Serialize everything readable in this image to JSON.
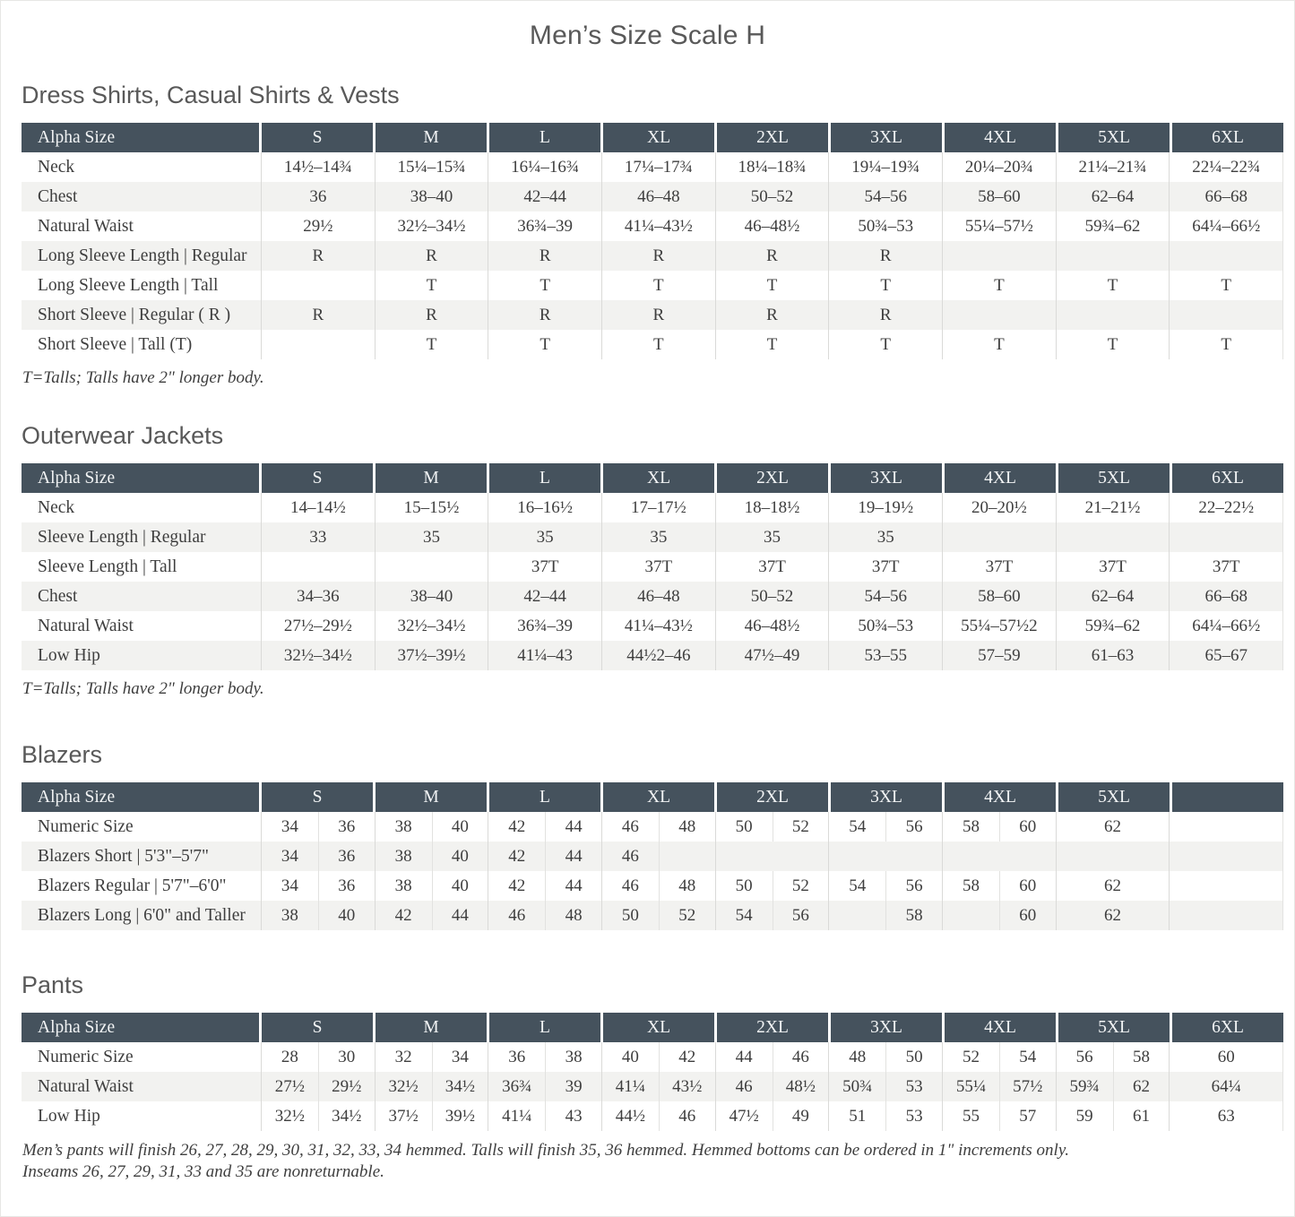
{
  "page": {
    "title": "Men’s Size Scale H"
  },
  "colors": {
    "header_bg": "#45525D",
    "header_text": "#F2F4F5",
    "row_alt": "#F2F2F0",
    "body_text": "#3E3E3E",
    "heading_text": "#595959",
    "cell_border": "#DADAD8"
  },
  "tables": [
    {
      "section": "Dress Shirts, Casual Shirts & Vests",
      "type": "range",
      "header": [
        "Alpha Size",
        "S",
        "M",
        "L",
        "XL",
        "2XL",
        "3XL",
        "4XL",
        "5XL",
        "6XL"
      ],
      "rows": [
        {
          "label": "Neck",
          "values": [
            "14½–14¾",
            "15¼–15¾",
            "16¼–16¾",
            "17¼–17¾",
            "18¼–18¾",
            "19¼–19¾",
            "20¼–20¾",
            "21¼–21¾",
            "22¼–22¾"
          ]
        },
        {
          "label": "Chest",
          "values": [
            "36",
            "38–40",
            "42–44",
            "46–48",
            "50–52",
            "54–56",
            "58–60",
            "62–64",
            "66–68"
          ]
        },
        {
          "label": "Natural Waist",
          "values": [
            "29½",
            "32½–34½",
            "36¾–39",
            "41¼–43½",
            "46–48½",
            "50¾–53",
            "55¼–57½",
            "59¾–62",
            "64¼–66½"
          ]
        },
        {
          "label": "Long Sleeve Length | Regular",
          "values": [
            "R",
            "R",
            "R",
            "R",
            "R",
            "R",
            "",
            "",
            ""
          ]
        },
        {
          "label": "Long Sleeve Length | Tall",
          "values": [
            "",
            "T",
            "T",
            "T",
            "T",
            "T",
            "T",
            "T",
            "T"
          ]
        },
        {
          "label": "Short Sleeve | Regular ( R )",
          "values": [
            "R",
            "R",
            "R",
            "R",
            "R",
            "R",
            "",
            "",
            ""
          ]
        },
        {
          "label": "Short Sleeve | Tall (T)",
          "values": [
            "",
            "T",
            "T",
            "T",
            "T",
            "T",
            "T",
            "T",
            "T"
          ]
        }
      ],
      "footnote": "T=Talls; Talls have 2\" longer body."
    },
    {
      "section": "Outerwear Jackets",
      "type": "range",
      "header": [
        "Alpha Size",
        "S",
        "M",
        "L",
        "XL",
        "2XL",
        "3XL",
        "4XL",
        "5XL",
        "6XL"
      ],
      "rows": [
        {
          "label": "Neck",
          "values": [
            "14–14½",
            "15–15½",
            "16–16½",
            "17–17½",
            "18–18½",
            "19–19½",
            "20–20½",
            "21–21½",
            "22–22½"
          ]
        },
        {
          "label": "Sleeve Length | Regular",
          "values": [
            "33",
            "35",
            "35",
            "35",
            "35",
            "35",
            "",
            "",
            ""
          ]
        },
        {
          "label": "Sleeve Length | Tall",
          "values": [
            "",
            "",
            "37T",
            "37T",
            "37T",
            "37T",
            "37T",
            "37T",
            "37T"
          ]
        },
        {
          "label": "Chest",
          "values": [
            "34–36",
            "38–40",
            "42–44",
            "46–48",
            "50–52",
            "54–56",
            "58–60",
            "62–64",
            "66–68"
          ]
        },
        {
          "label": "Natural Waist",
          "values": [
            "27½–29½",
            "32½–34½",
            "36¾–39",
            "41¼–43½",
            "46–48½",
            "50¾–53",
            "55¼–57½2",
            "59¾–62",
            "64¼–66½"
          ]
        },
        {
          "label": "Low Hip",
          "values": [
            "32½–34½",
            "37½–39½",
            "41¼–43",
            "44½2–46",
            "47½–49",
            "53–55",
            "57–59",
            "61–63",
            "65–67"
          ]
        }
      ],
      "footnote": "T=Talls; Talls have 2\" longer body."
    },
    {
      "section": "Blazers",
      "type": "split",
      "header": [
        "Alpha Size",
        "S",
        "M",
        "L",
        "XL",
        "2XL",
        "3XL",
        "4XL",
        "5XL",
        ""
      ],
      "rows": [
        {
          "label": "Numeric Size",
          "pairs": [
            [
              "34",
              "36"
            ],
            [
              "38",
              "40"
            ],
            [
              "42",
              "44"
            ],
            [
              "46",
              "48"
            ],
            [
              "50",
              "52"
            ],
            [
              "54",
              "56"
            ],
            [
              "58",
              "60"
            ],
            [
              "62"
            ],
            []
          ]
        },
        {
          "label": "Blazers Short | 5'3\"–5'7\"",
          "pairs": [
            [
              "34",
              "36"
            ],
            [
              "38",
              "40"
            ],
            [
              "42",
              "44"
            ],
            [
              "46",
              ""
            ],
            [],
            [],
            [],
            [],
            []
          ]
        },
        {
          "label": "Blazers Regular | 5'7\"–6'0\"",
          "pairs": [
            [
              "34",
              "36"
            ],
            [
              "38",
              "40"
            ],
            [
              "42",
              "44"
            ],
            [
              "46",
              "48"
            ],
            [
              "50",
              "52"
            ],
            [
              "54",
              "56"
            ],
            [
              "58",
              "60"
            ],
            [
              "62"
            ],
            []
          ]
        },
        {
          "label": "Blazers Long | 6'0\" and Taller",
          "pairs": [
            [
              "38",
              "40"
            ],
            [
              "42",
              "44"
            ],
            [
              "46",
              "48"
            ],
            [
              "50",
              "52"
            ],
            [
              "54",
              "56"
            ],
            [
              "",
              "58"
            ],
            [
              "",
              "60"
            ],
            [
              "62"
            ],
            []
          ]
        }
      ]
    },
    {
      "section": "Pants",
      "type": "split",
      "header": [
        "Alpha Size",
        "S",
        "M",
        "L",
        "XL",
        "2XL",
        "3XL",
        "4XL",
        "5XL",
        "6XL"
      ],
      "rows": [
        {
          "label": "Numeric Size",
          "pairs": [
            [
              "28",
              "30"
            ],
            [
              "32",
              "34"
            ],
            [
              "36",
              "38"
            ],
            [
              "40",
              "42"
            ],
            [
              "44",
              "46"
            ],
            [
              "48",
              "50"
            ],
            [
              "52",
              "54"
            ],
            [
              "56",
              "58"
            ],
            [
              "60"
            ]
          ]
        },
        {
          "label": "Natural Waist",
          "pairs": [
            [
              "27½",
              "29½"
            ],
            [
              "32½",
              "34½"
            ],
            [
              "36¾",
              "39"
            ],
            [
              "41¼",
              "43½"
            ],
            [
              "46",
              "48½"
            ],
            [
              "50¾",
              "53"
            ],
            [
              "55¼",
              "57½"
            ],
            [
              "59¾",
              "62"
            ],
            [
              "64¼"
            ]
          ]
        },
        {
          "label": "Low Hip",
          "pairs": [
            [
              "32½",
              "34½"
            ],
            [
              "37½",
              "39½"
            ],
            [
              "41¼",
              "43"
            ],
            [
              "44½",
              "46"
            ],
            [
              "47½",
              "49"
            ],
            [
              "51",
              "53"
            ],
            [
              "55",
              "57"
            ],
            [
              "59",
              "61"
            ],
            [
              "63"
            ]
          ]
        }
      ],
      "footnote_lines": [
        "Men’s pants will finish 26, 27, 28, 29, 30, 31, 32, 33, 34 hemmed. Talls will finish 35, 36 hemmed. Hemmed bottoms can be ordered in 1\" increments only.",
        "Inseams 26, 27, 29, 31, 33 and 35 are nonreturnable."
      ]
    }
  ]
}
